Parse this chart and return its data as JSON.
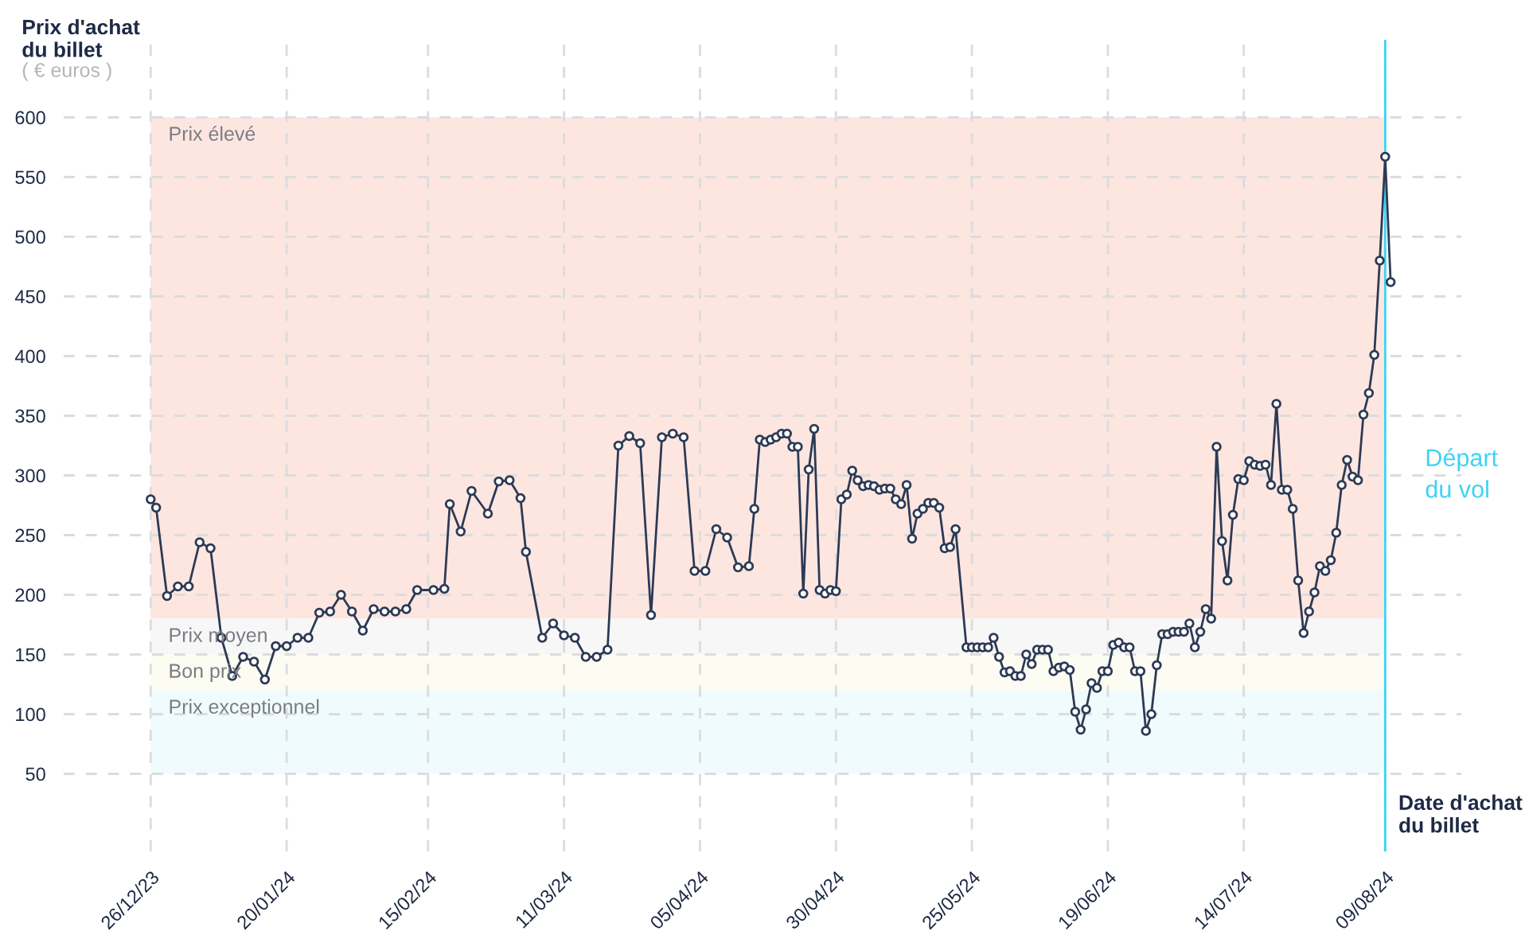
{
  "chart_data": {
    "type": "line",
    "xlabel": "Date d'achat\ndu billet",
    "ylabel": "Prix d'achat\ndu billet",
    "annotations": [
      "( € euros )"
    ],
    "x": [
      "2023-12-26",
      "2023-12-27",
      "2023-12-29",
      "2023-12-31",
      "2024-01-02",
      "2024-01-04",
      "2024-01-06",
      "2024-01-08",
      "2024-01-10",
      "2024-01-12",
      "2024-01-14",
      "2024-01-16",
      "2024-01-18",
      "2024-01-20",
      "2024-01-22",
      "2024-01-24",
      "2024-01-26",
      "2024-01-28",
      "2024-01-30",
      "2024-02-01",
      "2024-02-03",
      "2024-02-05",
      "2024-02-07",
      "2024-02-09",
      "2024-02-11",
      "2024-02-13",
      "2024-02-16",
      "2024-02-18",
      "2024-02-19",
      "2024-02-21",
      "2024-02-23",
      "2024-02-26",
      "2024-02-28",
      "2024-03-01",
      "2024-03-03",
      "2024-03-04",
      "2024-03-07",
      "2024-03-09",
      "2024-03-11",
      "2024-03-13",
      "2024-03-15",
      "2024-03-17",
      "2024-03-19",
      "2024-03-21",
      "2024-03-23",
      "2024-03-25",
      "2024-03-27",
      "2024-03-29",
      "2024-03-31",
      "2024-04-02",
      "2024-04-04",
      "2024-04-06",
      "2024-04-08",
      "2024-04-10",
      "2024-04-12",
      "2024-04-14",
      "2024-04-15",
      "2024-04-16",
      "2024-04-17",
      "2024-04-18",
      "2024-04-19",
      "2024-04-20",
      "2024-04-21",
      "2024-04-22",
      "2024-04-23",
      "2024-04-24",
      "2024-04-25",
      "2024-04-26",
      "2024-04-27",
      "2024-04-28",
      "2024-04-29",
      "2024-04-30",
      "2024-05-01",
      "2024-05-02",
      "2024-05-03",
      "2024-05-04",
      "2024-05-05",
      "2024-05-06",
      "2024-05-07",
      "2024-05-08",
      "2024-05-09",
      "2024-05-10",
      "2024-05-11",
      "2024-05-12",
      "2024-05-13",
      "2024-05-14",
      "2024-05-15",
      "2024-05-16",
      "2024-05-17",
      "2024-05-18",
      "2024-05-19",
      "2024-05-20",
      "2024-05-21",
      "2024-05-22",
      "2024-05-24",
      "2024-05-25",
      "2024-05-26",
      "2024-05-27",
      "2024-05-28",
      "2024-05-29",
      "2024-05-30",
      "2024-05-31",
      "2024-06-01",
      "2024-06-02",
      "2024-06-03",
      "2024-06-04",
      "2024-06-05",
      "2024-06-06",
      "2024-06-07",
      "2024-06-08",
      "2024-06-09",
      "2024-06-10",
      "2024-06-11",
      "2024-06-12",
      "2024-06-13",
      "2024-06-14",
      "2024-06-15",
      "2024-06-16",
      "2024-06-17",
      "2024-06-18",
      "2024-06-19",
      "2024-06-20",
      "2024-06-21",
      "2024-06-22",
      "2024-06-23",
      "2024-06-24",
      "2024-06-25",
      "2024-06-26",
      "2024-06-27",
      "2024-06-28",
      "2024-06-29",
      "2024-06-30",
      "2024-07-01",
      "2024-07-02",
      "2024-07-03",
      "2024-07-04",
      "2024-07-05",
      "2024-07-06",
      "2024-07-07",
      "2024-07-08",
      "2024-07-09",
      "2024-07-10",
      "2024-07-11",
      "2024-07-12",
      "2024-07-13",
      "2024-07-14",
      "2024-07-15",
      "2024-07-16",
      "2024-07-17",
      "2024-07-18",
      "2024-07-19",
      "2024-07-20",
      "2024-07-21",
      "2024-07-22",
      "2024-07-23",
      "2024-07-24",
      "2024-07-25",
      "2024-07-26",
      "2024-07-27",
      "2024-07-28",
      "2024-07-29",
      "2024-07-30",
      "2024-07-31",
      "2024-08-01",
      "2024-08-02",
      "2024-08-03",
      "2024-08-04",
      "2024-08-05",
      "2024-08-06",
      "2024-08-07",
      "2024-08-08",
      "2024-08-09",
      "2024-08-10"
    ],
    "series": [
      {
        "color": "#2c3a55",
        "values": [
          280,
          273,
          199,
          207,
          207,
          244,
          239,
          164,
          132,
          148,
          144,
          129,
          157,
          157,
          164,
          164,
          185,
          186,
          200,
          186,
          170,
          188,
          186,
          186,
          188,
          204,
          204,
          205,
          276,
          253,
          287,
          268,
          295,
          296,
          281,
          236,
          164,
          176,
          166,
          164,
          148,
          148,
          154,
          325,
          333,
          327,
          183,
          332,
          335,
          332,
          220,
          220,
          255,
          248,
          223,
          224,
          272,
          330,
          328,
          330,
          332,
          335,
          335,
          324,
          324,
          201,
          305,
          339,
          204,
          201,
          204,
          203,
          280,
          284,
          304,
          296,
          291,
          292,
          291,
          288,
          289,
          289,
          280,
          276,
          292,
          247,
          268,
          272,
          277,
          277,
          273,
          239,
          240,
          255,
          156,
          156,
          156,
          156,
          156,
          164,
          148,
          135,
          136,
          132,
          132,
          150,
          142,
          154,
          154,
          154,
          136,
          139,
          140,
          137,
          102,
          87,
          104,
          126,
          122,
          136,
          136,
          158,
          160,
          156,
          156,
          136,
          136,
          86,
          100,
          141,
          167,
          167,
          169,
          169,
          169,
          176,
          156,
          169,
          188,
          180,
          324,
          245,
          212,
          267,
          297,
          296,
          312,
          309,
          308,
          309,
          292,
          360,
          288,
          288,
          272,
          212,
          168,
          186,
          202,
          224,
          220,
          229,
          252,
          292,
          313,
          299,
          296,
          351,
          369,
          401,
          480,
          567,
          462
        ]
      }
    ],
    "xlim": [
      "2023-12-10",
      "2024-08-23"
    ],
    "xticks": [
      {
        "value": "2023-12-26",
        "label": "26/12/23"
      },
      {
        "value": "2024-01-20",
        "label": "20/01/24"
      },
      {
        "value": "2024-02-15",
        "label": "15/02/24"
      },
      {
        "value": "2024-03-11",
        "label": "11/03/24"
      },
      {
        "value": "2024-04-05",
        "label": "05/04/24"
      },
      {
        "value": "2024-04-30",
        "label": "30/04/24"
      },
      {
        "value": "2024-05-25",
        "label": "25/05/24"
      },
      {
        "value": "2024-06-19",
        "label": "19/06/24"
      },
      {
        "value": "2024-07-14",
        "label": "14/07/24"
      },
      {
        "value": "2024-08-09",
        "label": "09/08/24"
      }
    ],
    "ylim": [
      -15,
      665
    ],
    "yticks": [
      50,
      100,
      150,
      200,
      250,
      300,
      350,
      400,
      450,
      500,
      550,
      600
    ],
    "bands": [
      {
        "axis": "y",
        "from": 180,
        "to": 600,
        "label": "Prix élevé",
        "color": "#fde6e0"
      },
      {
        "axis": "y",
        "from": 150,
        "to": 180,
        "label": "Prix moyen",
        "color": "#f7f7f7"
      },
      {
        "axis": "y",
        "from": 120,
        "to": 150,
        "label": "Bon prix",
        "color": "#fcfcf2"
      },
      {
        "axis": "y",
        "from": 50,
        "to": 120,
        "label": "Prix exceptionnel",
        "color": "#f0fbfd"
      }
    ],
    "ref_lines": [
      {
        "axis": "x",
        "value": "2024-08-09",
        "label": "Départ\ndu vol",
        "color": "#3dd3f5",
        "line_style": "solid"
      }
    ],
    "grid": true,
    "marker": "circle",
    "line_style": "solid",
    "legend": false
  }
}
